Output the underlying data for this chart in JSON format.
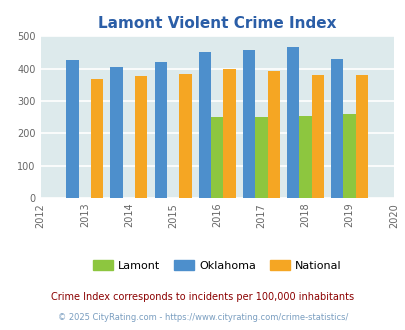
{
  "title": "Lamont Violent Crime Index",
  "years": [
    2012,
    2013,
    2014,
    2015,
    2016,
    2017,
    2018,
    2019,
    2020
  ],
  "bar_years": [
    2013,
    2014,
    2015,
    2016,
    2017,
    2018,
    2019
  ],
  "lamont": [
    0,
    0,
    0,
    249,
    250,
    254,
    260
  ],
  "oklahoma": [
    428,
    405,
    422,
    450,
    458,
    466,
    431
  ],
  "national": [
    368,
    376,
    384,
    398,
    394,
    381,
    381
  ],
  "lamont_color": "#8dc63f",
  "oklahoma_color": "#4d8fcc",
  "national_color": "#f5a623",
  "bg_color": "#ddeaec",
  "title_color": "#2b5ea7",
  "ylim": [
    0,
    500
  ],
  "yticks": [
    0,
    100,
    200,
    300,
    400,
    500
  ],
  "footnote": "Crime Index corresponds to incidents per 100,000 inhabitants",
  "footnote2": "© 2025 CityRating.com - https://www.cityrating.com/crime-statistics/",
  "footnote_color": "#8b0000",
  "footnote2_color": "#7a9ec0",
  "legend_labels": [
    "Lamont",
    "Oklahoma",
    "National"
  ],
  "bar_width": 0.28
}
